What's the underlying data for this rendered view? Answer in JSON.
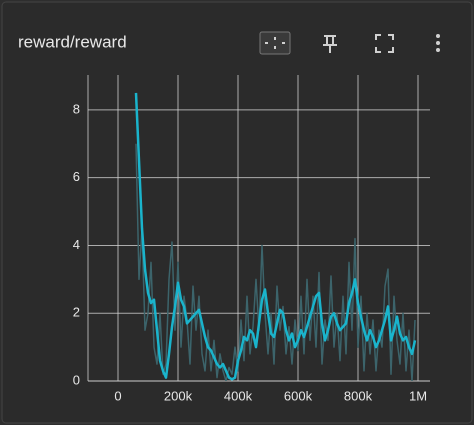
{
  "chart_data": {
    "type": "line",
    "title": "reward/reward",
    "x": [
      60000,
      70000,
      80000,
      90000,
      100000,
      110000,
      120000,
      130000,
      140000,
      150000,
      160000,
      170000,
      180000,
      190000,
      200000,
      210000,
      220000,
      230000,
      240000,
      250000,
      260000,
      270000,
      280000,
      290000,
      300000,
      310000,
      320000,
      330000,
      340000,
      350000,
      360000,
      370000,
      380000,
      390000,
      400000,
      410000,
      420000,
      430000,
      440000,
      450000,
      460000,
      470000,
      480000,
      490000,
      500000,
      510000,
      520000,
      530000,
      540000,
      550000,
      560000,
      570000,
      580000,
      590000,
      600000,
      610000,
      620000,
      630000,
      640000,
      650000,
      660000,
      670000,
      680000,
      690000,
      700000,
      710000,
      720000,
      730000,
      740000,
      750000,
      760000,
      770000,
      780000,
      790000,
      800000,
      810000,
      820000,
      830000,
      840000,
      850000,
      860000,
      870000,
      880000,
      890000,
      900000,
      910000,
      920000,
      930000,
      940000,
      950000,
      960000,
      970000,
      980000,
      990000
    ],
    "series": [
      {
        "color": "#3c646b",
        "values": [
          7.0,
          3.0,
          4.5,
          1.5,
          2.0,
          3.5,
          1.0,
          0.5,
          2.0,
          0.2,
          0.5,
          3.0,
          4.1,
          1.5,
          3.5,
          1.0,
          2.5,
          1.8,
          0.5,
          2.8,
          1.5,
          2.5,
          0.8,
          0.3,
          1.5,
          0.3,
          1.2,
          0.1,
          0.8,
          0.3,
          0.0,
          0.4,
          0.2,
          1.0,
          0.3,
          1.8,
          0.6,
          2.5,
          0.8,
          1.6,
          3.0,
          1.5,
          4.0,
          2.0,
          0.8,
          2.0,
          0.5,
          2.8,
          1.5,
          2.2,
          0.8,
          1.6,
          0.5,
          1.8,
          0.9,
          2.5,
          0.8,
          3.0,
          1.2,
          2.5,
          1.0,
          3.2,
          0.5,
          1.8,
          1.2,
          3.1,
          1.0,
          2.0,
          0.6,
          2.5,
          0.8,
          3.5,
          1.5,
          4.2,
          1.0,
          2.5,
          0.3,
          2.0,
          0.8,
          1.8,
          0.3,
          1.5,
          1.0,
          2.8,
          3.3,
          0.2,
          2.5,
          1.2,
          0.5,
          2.0,
          0.3,
          1.5,
          0.0,
          1.8
        ]
      },
      {
        "color": "#1ab4cc",
        "values": [
          8.5,
          6.5,
          4.5,
          3.3,
          2.6,
          2.3,
          2.4,
          1.5,
          0.6,
          0.3,
          0.1,
          0.8,
          1.6,
          2.2,
          2.9,
          2.4,
          2.2,
          1.7,
          1.8,
          1.9,
          2.0,
          2.1,
          1.7,
          1.3,
          1.0,
          0.9,
          0.7,
          0.5,
          0.4,
          0.5,
          0.3,
          0.1,
          0.05,
          0.1,
          0.6,
          0.9,
          1.3,
          1.2,
          1.5,
          1.4,
          1.0,
          1.7,
          2.4,
          2.7,
          2.0,
          1.4,
          1.3,
          1.7,
          2.1,
          2.0,
          1.5,
          1.2,
          1.4,
          1.0,
          1.2,
          1.5,
          1.3,
          1.6,
          1.9,
          2.2,
          2.5,
          2.6,
          1.7,
          1.2,
          1.5,
          1.9,
          2.0,
          1.7,
          1.5,
          1.6,
          1.7,
          2.3,
          2.6,
          3.0,
          2.3,
          1.9,
          1.5,
          1.2,
          1.5,
          1.3,
          1.0,
          1.2,
          1.5,
          1.8,
          2.2,
          1.2,
          1.5,
          1.9,
          1.4,
          1.2,
          1.3,
          1.0,
          0.8,
          1.2
        ]
      }
    ],
    "xlim": [
      -100000,
      1040000
    ],
    "ylim": [
      0,
      9.03
    ],
    "xticks": [
      0,
      {
        "value": 200000,
        "label": "200k"
      },
      {
        "value": 400000,
        "label": "400k"
      },
      {
        "value": 600000,
        "label": "600k"
      },
      {
        "value": 800000,
        "label": "800k"
      },
      {
        "value": 1000000,
        "label": "1M"
      }
    ],
    "yticks": [
      0,
      2,
      4,
      6,
      8
    ],
    "grid": true
  }
}
